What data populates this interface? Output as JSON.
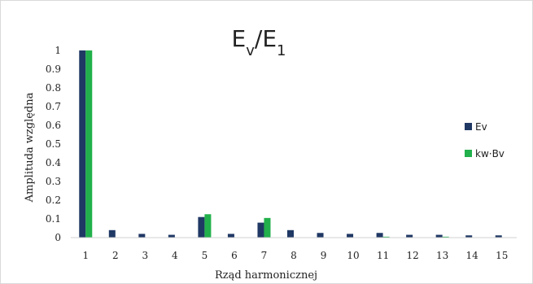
{
  "chart_data": {
    "type": "bar",
    "title_main": "E",
    "title_sub1": "v",
    "title_mid": "/E",
    "title_sub2": "1",
    "xlabel": "Rząd harmonicznej",
    "ylabel": "Amplituda względna",
    "ylim": [
      0,
      1
    ],
    "yticks": [
      "0",
      "0.1",
      "0.2",
      "0.3",
      "0.4",
      "0.5",
      "0.6",
      "0.7",
      "0.8",
      "0.9",
      "1"
    ],
    "categories": [
      "1",
      "2",
      "3",
      "4",
      "5",
      "6",
      "7",
      "8",
      "9",
      "10",
      "11",
      "12",
      "13",
      "14",
      "15"
    ],
    "series": [
      {
        "name": "Ev",
        "color": "#1f3864",
        "values": [
          1.0,
          0.04,
          0.02,
          0.015,
          0.11,
          0.02,
          0.08,
          0.04,
          0.025,
          0.02,
          0.025,
          0.015,
          0.015,
          0.012,
          0.012
        ]
      },
      {
        "name": "kw·Bv",
        "color": "#21b04b",
        "values": [
          1.0,
          0.0,
          0.0,
          0.0,
          0.125,
          0.0,
          0.105,
          0.0,
          0.0,
          0.0,
          0.005,
          0.0,
          0.005,
          0.0,
          0.0
        ]
      }
    ],
    "grid": false,
    "legend_position": "right"
  }
}
